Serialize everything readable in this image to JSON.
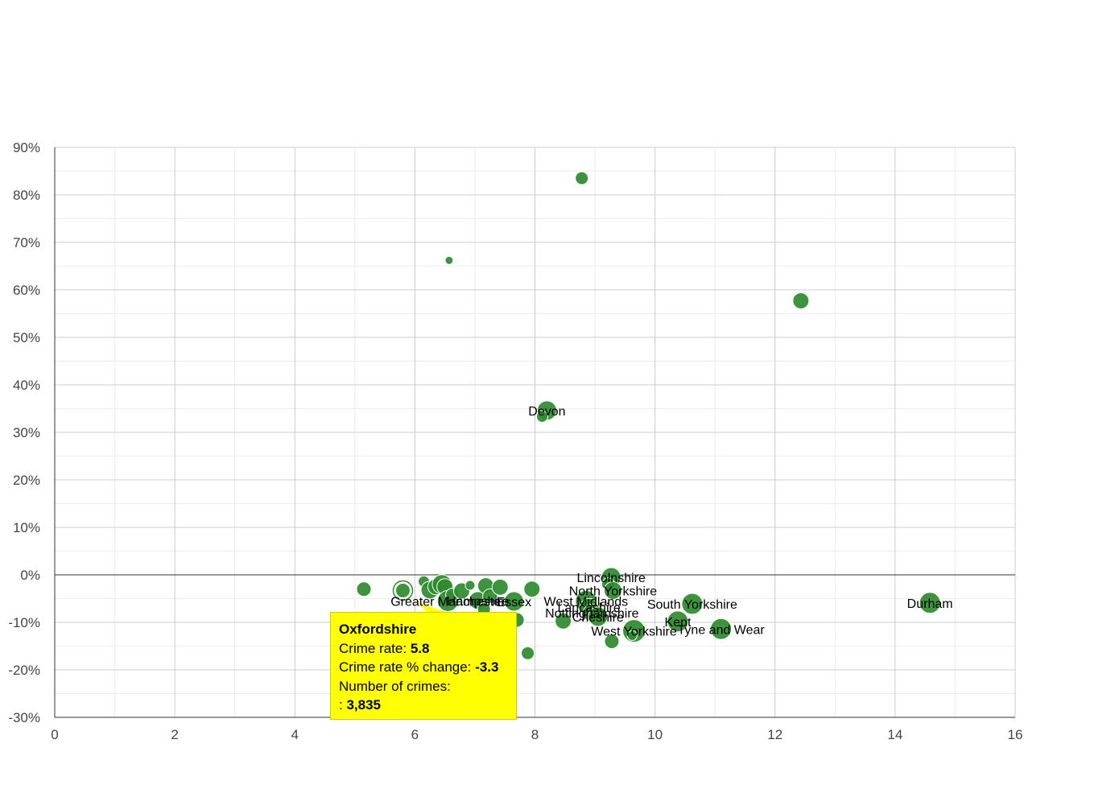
{
  "chart_data": {
    "type": "scatter",
    "title": "",
    "xlabel": "",
    "ylabel": "",
    "xlim": [
      0,
      16
    ],
    "ylim": [
      -30,
      90
    ],
    "x_ticks": [
      0,
      2,
      4,
      6,
      8,
      10,
      12,
      14,
      16
    ],
    "y_ticks": [
      90,
      80,
      70,
      60,
      50,
      40,
      30,
      20,
      10,
      0,
      -10,
      -20,
      -30
    ],
    "y_tick_labels": [
      "90%",
      "80%",
      "70%",
      "60%",
      "50%",
      "40%",
      "30%",
      "20%",
      "10%",
      "0%",
      "-10%",
      "-20%",
      "-30%"
    ],
    "x_tick_labels": [
      "0",
      "2",
      "4",
      "6",
      "8",
      "10",
      "12",
      "14",
      "16"
    ],
    "grid": true,
    "point_color": "#2e8b2e",
    "points": [
      {
        "x": 8.78,
        "y": 83.5,
        "size": 8
      },
      {
        "x": 6.57,
        "y": 66.2,
        "size": 5
      },
      {
        "x": 12.43,
        "y": 57.7,
        "size": 10
      },
      {
        "x": 8.2,
        "y": 34.6,
        "size": 12,
        "label": "Devon"
      },
      {
        "x": 8.12,
        "y": 33.3,
        "size": 7
      },
      {
        "x": 5.15,
        "y": -3.0,
        "size": 9
      },
      {
        "x": 5.8,
        "y": -3.3,
        "size": 9,
        "highlight": true
      },
      {
        "x": 6.15,
        "y": -1.4,
        "size": 7
      },
      {
        "x": 6.25,
        "y": -3.2,
        "size": 11
      },
      {
        "x": 6.35,
        "y": -2.5,
        "size": 10
      },
      {
        "x": 6.45,
        "y": -2.0,
        "size": 12
      },
      {
        "x": 6.5,
        "y": -2.5,
        "size": 10
      },
      {
        "x": 6.55,
        "y": -5.5,
        "size": 13,
        "label": "Greater Manchester"
      },
      {
        "x": 6.62,
        "y": -4.2,
        "size": 8
      },
      {
        "x": 6.78,
        "y": -3.4,
        "size": 10
      },
      {
        "x": 6.92,
        "y": -2.2,
        "size": 6
      },
      {
        "x": 7.05,
        "y": -5.4,
        "size": 11,
        "label": "Hampshire"
      },
      {
        "x": 7.15,
        "y": -7.2,
        "size": 8
      },
      {
        "x": 7.18,
        "y": -2.3,
        "size": 10
      },
      {
        "x": 7.25,
        "y": -4.5,
        "size": 9
      },
      {
        "x": 7.42,
        "y": -2.6,
        "size": 10
      },
      {
        "x": 7.65,
        "y": -5.6,
        "size": 12,
        "label": "Essex"
      },
      {
        "x": 7.7,
        "y": -9.5,
        "size": 9
      },
      {
        "x": 7.95,
        "y": -3.0,
        "size": 10
      },
      {
        "x": 7.88,
        "y": -16.5,
        "size": 8
      },
      {
        "x": 8.47,
        "y": -9.7,
        "size": 10
      },
      {
        "x": 8.85,
        "y": -5.5,
        "size": 13,
        "label": "West Midlands"
      },
      {
        "x": 8.9,
        "y": -6.8,
        "size": 11,
        "label": "Lancashire"
      },
      {
        "x": 8.95,
        "y": -8.0,
        "size": 11,
        "label": "Nottinghamshire"
      },
      {
        "x": 9.05,
        "y": -8.8,
        "size": 12,
        "label": "Cheshire"
      },
      {
        "x": 9.27,
        "y": -0.5,
        "size": 12,
        "label": "Lincolnshire"
      },
      {
        "x": 9.22,
        "y": -2.0,
        "size": 8
      },
      {
        "x": 9.3,
        "y": -3.3,
        "size": 11,
        "label": "North Yorkshire"
      },
      {
        "x": 9.28,
        "y": -14.0,
        "size": 9
      },
      {
        "x": 9.65,
        "y": -11.8,
        "size": 14,
        "label": "West Yorkshire"
      },
      {
        "x": 9.62,
        "y": -12.8,
        "size": 6
      },
      {
        "x": 10.38,
        "y": -9.8,
        "size": 13,
        "label": "Kent"
      },
      {
        "x": 10.62,
        "y": -6.1,
        "size": 13,
        "label": "South Yorkshire"
      },
      {
        "x": 11.1,
        "y": -11.4,
        "size": 13,
        "label": "Tyne and Wear"
      },
      {
        "x": 14.58,
        "y": -5.9,
        "size": 13,
        "label": "Durham"
      }
    ],
    "tooltip": {
      "title": "Oxfordshire",
      "rate_label": "Crime rate:",
      "rate_value": "5.8",
      "change_label": "Crime rate % change:",
      "change_value": "-3.3",
      "crimes_label": "Number of crimes:",
      "crimes_prefix": ":",
      "crimes_value": "3,835"
    }
  }
}
